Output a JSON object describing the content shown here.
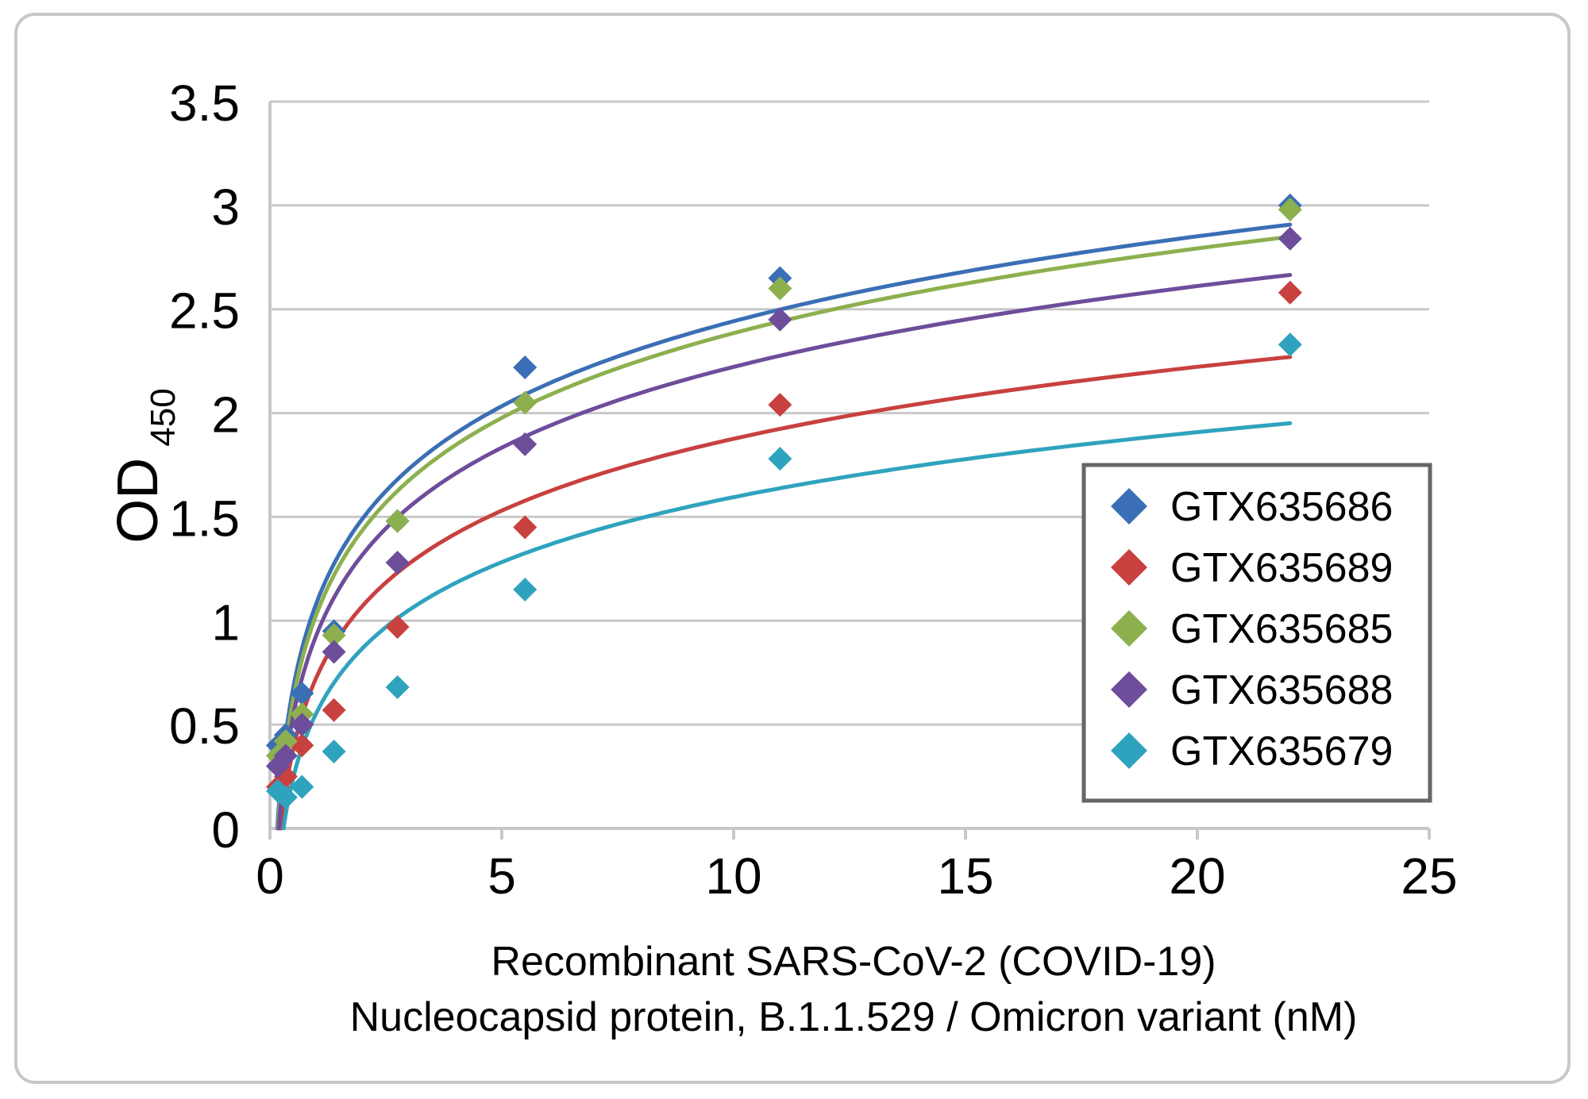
{
  "chart_data": {
    "type": "scatter",
    "xlabel_lines": [
      "Recombinant SARS-CoV-2 (COVID-19)",
      "Nucleocapsid protein, B.1.1.529 / Omicron variant (nM)"
    ],
    "ylabel": "OD",
    "ylabel_subscript": "450",
    "xlim": [
      0,
      25
    ],
    "ylim": [
      0,
      3.5
    ],
    "x_ticks": [
      "0",
      "5",
      "10",
      "15",
      "20",
      "25"
    ],
    "y_ticks": [
      "0",
      "0.5",
      "1",
      "1.5",
      "2",
      "2.5",
      "3",
      "3.5"
    ],
    "grid": "horizontal",
    "legend_position": "bottom-right",
    "trendline": "logarithmic",
    "x": [
      0.17,
      0.34,
      0.69,
      1.38,
      2.75,
      5.5,
      11,
      22
    ],
    "series": [
      {
        "name": "GTX635686",
        "color": "#3a6fb5",
        "values": [
          0.4,
          0.45,
          0.65,
          0.95,
          1.48,
          2.22,
          2.65,
          3.0
        ]
      },
      {
        "name": "GTX635689",
        "color": "#c8413f",
        "values": [
          0.2,
          0.25,
          0.4,
          0.57,
          0.97,
          1.45,
          2.04,
          2.58
        ]
      },
      {
        "name": "GTX635685",
        "color": "#8db04f",
        "values": [
          0.35,
          0.42,
          0.55,
          0.93,
          1.48,
          2.05,
          2.6,
          2.98
        ]
      },
      {
        "name": "GTX635688",
        "color": "#6e4d9b",
        "values": [
          0.3,
          0.35,
          0.5,
          0.85,
          1.28,
          1.85,
          2.45,
          2.84
        ]
      },
      {
        "name": "GTX635679",
        "color": "#2fa3be",
        "values": [
          0.18,
          0.15,
          0.2,
          0.37,
          0.68,
          1.15,
          1.78,
          2.33
        ]
      }
    ]
  }
}
